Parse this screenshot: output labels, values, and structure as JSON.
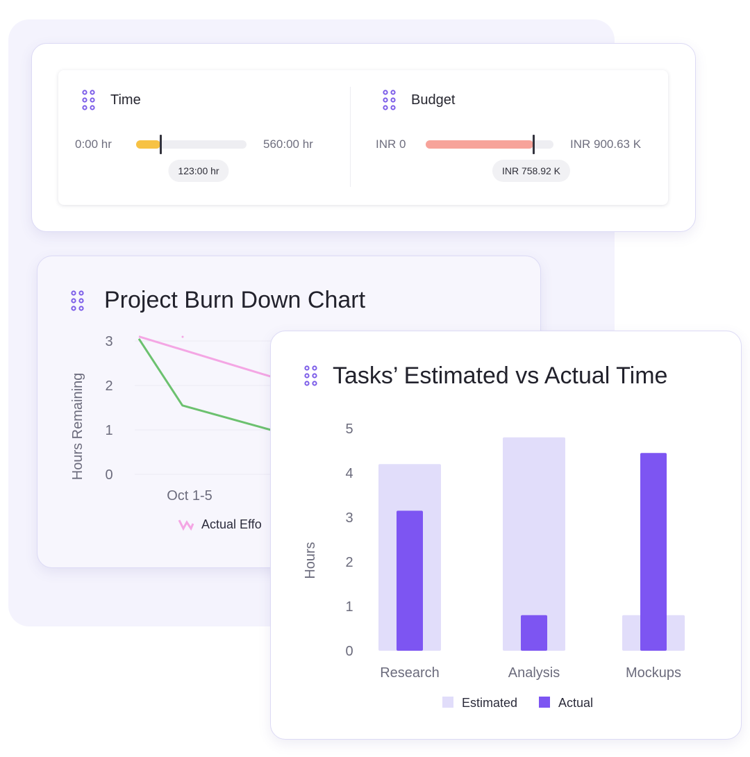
{
  "summary": {
    "time": {
      "title": "Time",
      "min_label": "0:00 hr",
      "max_label": "560:00 hr",
      "current_label": "123:00 hr",
      "progress_fraction": 0.22,
      "color": "#f7c244"
    },
    "budget": {
      "title": "Budget",
      "min_label": "INR 0",
      "max_label": "INR 900.63 K",
      "current_label": "INR 758.92 K",
      "progress_fraction": 0.84,
      "color": "#f7a39a"
    },
    "grip_icon": "drag-handle-icon",
    "accent": "#7b5ce8"
  },
  "burndown": {
    "title": "Project Burn Down Chart",
    "legend_visible_text": "Actual Effo",
    "legend_icon": "zigzag-line-icon",
    "chart_data": {
      "type": "line",
      "ylabel": "Hours Remaining",
      "ylim": [
        0,
        3
      ],
      "yticks": [
        "3",
        "2",
        "1",
        "0"
      ],
      "xticks": [
        "Oct 1-5"
      ],
      "series": [
        {
          "color": "#f4a6e4",
          "points": [
            [
              0,
              3.1
            ],
            [
              1,
              2.2
            ]
          ]
        },
        {
          "color": "#6cc16f",
          "points": [
            [
              0,
              3.05
            ],
            [
              0.33,
              1.55
            ],
            [
              1,
              1.0
            ]
          ]
        }
      ]
    }
  },
  "tasks": {
    "title": "Tasks’ Estimated vs Actual Time",
    "chart_data": {
      "type": "bar",
      "ylabel": "Hours",
      "ylim": [
        0,
        5
      ],
      "yticks": [
        "5",
        "4",
        "3",
        "2",
        "1",
        "0"
      ],
      "categories": [
        "Research",
        "Analysis",
        "Mockups"
      ],
      "series": [
        {
          "name": "Estimated",
          "values": [
            4.2,
            4.8,
            0.8
          ],
          "color": "#e1ddfa"
        },
        {
          "name": "Actual",
          "values": [
            3.15,
            0.8,
            4.45
          ],
          "color": "#7d55f2"
        }
      ],
      "legend": [
        "Estimated",
        "Actual"
      ],
      "legend_position": "bottom"
    }
  }
}
